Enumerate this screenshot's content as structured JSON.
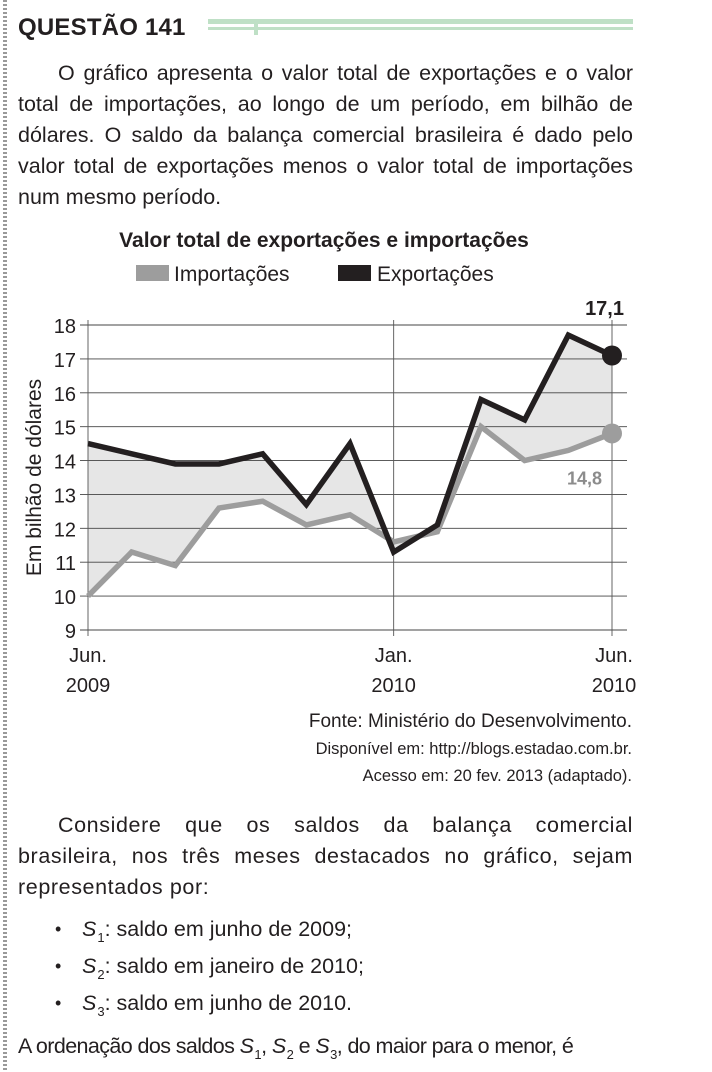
{
  "question": {
    "title": "QUESTÃO 141",
    "intro": "O gráfico apresenta o valor total de exportações e o valor total de importações, ao longo de um período, em bilhão de dólares. O saldo da balança comercial brasileira é dado pelo valor total de exportações menos o valor total de importações num mesmo período.",
    "source": {
      "line1": "Fonte: Ministério do Desenvolvimento.",
      "line2": "Disponível em: http://blogs.estadao.com.br.",
      "line3": "Acesso em: 20 fev. 2013 (adaptado)."
    },
    "consider": "Considere que os saldos da balança comercial brasileira, nos três meses destacados no gráfico, sejam representados por:",
    "bullets": [
      {
        "var": "S",
        "sub": "1",
        "text": ": saldo em junho de 2009;"
      },
      {
        "var": "S",
        "sub": "2",
        "text": ": saldo em janeiro de 2010;"
      },
      {
        "var": "S",
        "sub": "3",
        "text": ": saldo em junho de 2010."
      }
    ],
    "final": {
      "part1": "A ordenação dos saldos ",
      "v1": "S",
      "s1": "1",
      "sep1": ", ",
      "v2": "S",
      "s2": "2",
      "sep2": " e ",
      "v3": "S",
      "s3": "3",
      "part2": ", do maior para o menor, é"
    }
  },
  "chart_data": {
    "type": "line",
    "title": "Valor total de exportações e importações",
    "ylabel": "Em bilhão de dólares",
    "ylim": [
      9,
      18
    ],
    "yticks": [
      9,
      10,
      11,
      12,
      13,
      14,
      15,
      16,
      17,
      18
    ],
    "grid": true,
    "legend_position": "top",
    "x_ticks": [
      {
        "pos": 0,
        "line1": "Jun.",
        "line2": "2009"
      },
      {
        "pos": 7,
        "line1": "Jan.",
        "line2": "2010"
      },
      {
        "pos": 12,
        "line1": "Jun.",
        "line2": "2010"
      }
    ],
    "x": [
      0,
      1,
      2,
      3,
      4,
      5,
      6,
      7,
      8,
      9,
      10,
      11,
      12
    ],
    "series": [
      {
        "name": "Importações",
        "color": "#9d9d9d",
        "values": [
          10.0,
          11.3,
          10.9,
          12.6,
          12.8,
          12.1,
          12.4,
          11.6,
          11.9,
          15.0,
          14.0,
          14.3,
          14.8
        ]
      },
      {
        "name": "Exportações",
        "color": "#231f20",
        "values": [
          14.5,
          14.2,
          13.9,
          13.9,
          14.2,
          12.7,
          14.5,
          11.3,
          12.1,
          15.8,
          15.2,
          17.7,
          17.1
        ]
      }
    ],
    "fill_between_color": "#e6e6e6",
    "annotations": [
      {
        "series": "Exportações",
        "text": "17,1",
        "color": "#231f20",
        "bold": true
      },
      {
        "series": "Importações",
        "text": "14,8",
        "color": "#8c8c8c",
        "bold": true
      }
    ]
  }
}
